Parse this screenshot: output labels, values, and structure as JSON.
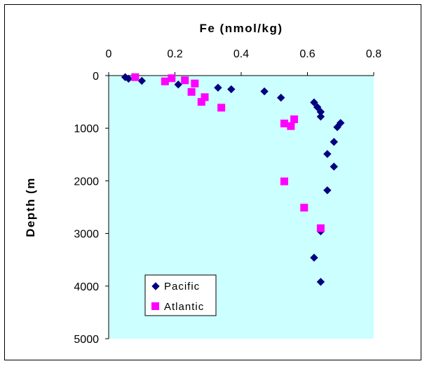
{
  "chart_data": {
    "type": "scatter",
    "title": "",
    "xlabel": "Fe (nmol/kg)",
    "ylabel": "Depth (m",
    "xlim": [
      0,
      0.8
    ],
    "ylim": [
      0,
      5000
    ],
    "y_reversed": true,
    "x_axis_position": "top",
    "x_ticks": [
      "0",
      "0.2",
      "0.4",
      "0.6",
      "0.8"
    ],
    "y_ticks": [
      "0",
      "1000",
      "2000",
      "3000",
      "4000",
      "5000"
    ],
    "grid": false,
    "plot_background": "#ccffff",
    "legend_position": "bottom-left",
    "series": [
      {
        "name": "Pacific",
        "marker": "diamond",
        "color": "#000080",
        "points": [
          {
            "x": 0.05,
            "y": 30
          },
          {
            "x": 0.06,
            "y": 60
          },
          {
            "x": 0.1,
            "y": 100
          },
          {
            "x": 0.21,
            "y": 170
          },
          {
            "x": 0.33,
            "y": 230
          },
          {
            "x": 0.37,
            "y": 260
          },
          {
            "x": 0.47,
            "y": 300
          },
          {
            "x": 0.52,
            "y": 420
          },
          {
            "x": 0.62,
            "y": 510
          },
          {
            "x": 0.63,
            "y": 600
          },
          {
            "x": 0.64,
            "y": 690
          },
          {
            "x": 0.64,
            "y": 780
          },
          {
            "x": 0.7,
            "y": 900
          },
          {
            "x": 0.69,
            "y": 980
          },
          {
            "x": 0.68,
            "y": 1260
          },
          {
            "x": 0.66,
            "y": 1490
          },
          {
            "x": 0.68,
            "y": 1730
          },
          {
            "x": 0.66,
            "y": 2180
          },
          {
            "x": 0.64,
            "y": 2960
          },
          {
            "x": 0.62,
            "y": 3460
          },
          {
            "x": 0.64,
            "y": 3920
          }
        ]
      },
      {
        "name": "Atlantic",
        "marker": "square",
        "color": "#ff00ff",
        "points": [
          {
            "x": 0.08,
            "y": 30
          },
          {
            "x": 0.19,
            "y": 50
          },
          {
            "x": 0.23,
            "y": 90
          },
          {
            "x": 0.17,
            "y": 110
          },
          {
            "x": 0.26,
            "y": 150
          },
          {
            "x": 0.25,
            "y": 310
          },
          {
            "x": 0.29,
            "y": 410
          },
          {
            "x": 0.28,
            "y": 500
          },
          {
            "x": 0.34,
            "y": 610
          },
          {
            "x": 0.56,
            "y": 830
          },
          {
            "x": 0.53,
            "y": 910
          },
          {
            "x": 0.55,
            "y": 960
          },
          {
            "x": 0.53,
            "y": 2010
          },
          {
            "x": 0.59,
            "y": 2510
          },
          {
            "x": 0.64,
            "y": 2900
          }
        ]
      }
    ]
  }
}
